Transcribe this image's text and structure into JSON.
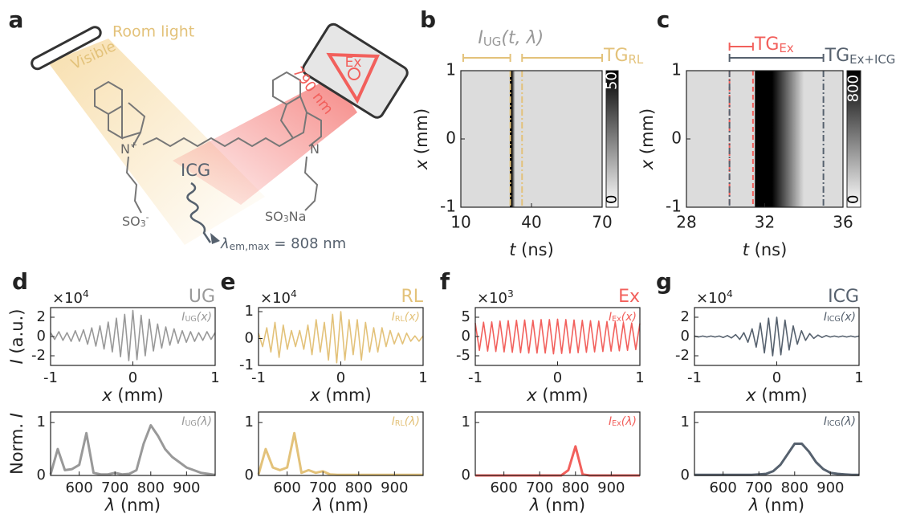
{
  "diagram": {
    "label": "a",
    "room_light": "Room light",
    "visible": "Visible",
    "laser": "Ex",
    "wavelength": "790 nm",
    "molecule": "ICG",
    "nitrogen_left": [
      {
        "text": "N"
      },
      {
        "text": "+",
        "sup": true
      }
    ],
    "nitrogen_right": [
      {
        "text": "N"
      }
    ],
    "sulfonate_left": [
      {
        "text": "SO"
      },
      {
        "text": "3",
        "sub": true
      },
      {
        "text": "-",
        "sup": true
      }
    ],
    "sulfonate_right": [
      {
        "text": "SO"
      },
      {
        "text": "3",
        "sub": true
      },
      {
        "text": "Na"
      }
    ],
    "emission": [
      {
        "text": "λ",
        "italic": true
      },
      {
        "text": "em,max",
        "sub": true
      },
      {
        "text": " = 808 nm"
      }
    ]
  },
  "chart_data": [
    {
      "type": "heatmap",
      "label": "b",
      "xlabel": [
        {
          "text": "t",
          "italic": true
        },
        {
          "text": " (ns)"
        }
      ],
      "ylabel": [
        {
          "text": "x",
          "italic": true
        },
        {
          "text": " (mm)"
        }
      ],
      "xlim": [
        10,
        70
      ],
      "xticks": [
        10,
        40,
        70
      ],
      "ylim": [
        -1,
        1
      ],
      "yticks": [
        -1,
        0,
        1
      ],
      "pulse": [
        30.8,
        33
      ],
      "markers": [
        {
          "x": 31,
          "color": "#e3c27a",
          "dash": "dashdot"
        },
        {
          "x": 36,
          "color": "#e3c27a",
          "dash": "dashdot"
        }
      ],
      "gates": [
        {
          "label": [
            {
              "text": "I",
              "italic": true
            },
            {
              "text": "UG",
              "sub": true
            },
            {
              "text": "(t, λ)",
              "italic": true
            }
          ],
          "color": "#e3c27a",
          "label_color": "#999999",
          "range": [
            11,
            31
          ]
        },
        {
          "label": [
            {
              "text": "TG"
            },
            {
              "text": "RL",
              "sub": true
            }
          ],
          "color": "#e3c27a",
          "range": [
            36,
            70
          ]
        }
      ],
      "colorbar": {
        "lim": [
          0,
          54
        ],
        "ticks": [
          0,
          50
        ]
      }
    },
    {
      "type": "heatmap",
      "label": "c",
      "xlabel": [
        {
          "text": "t",
          "italic": true
        },
        {
          "text": " (ns)"
        }
      ],
      "ylabel": [
        {
          "text": "x",
          "italic": true
        },
        {
          "text": " (mm)"
        }
      ],
      "xlim": [
        28,
        36
      ],
      "xticks": [
        28,
        32,
        36
      ],
      "ylim": [
        -1,
        1
      ],
      "yticks": [
        -1,
        0,
        1
      ],
      "pulse": [
        31.5,
        34
      ],
      "markers": [
        {
          "x": 30.2,
          "color": "#f2605c",
          "dash": "dashed"
        },
        {
          "x": 31.4,
          "color": "#f2605c",
          "dash": "dashed"
        },
        {
          "x": 30.2,
          "color": "#56616e",
          "dash": "dashdot"
        },
        {
          "x": 35,
          "color": "#56616e",
          "dash": "dashdot"
        }
      ],
      "gates": [
        {
          "label": [
            {
              "text": "TG"
            },
            {
              "text": "Ex",
              "sub": true
            }
          ],
          "color": "#f2605c",
          "range": [
            30.2,
            31.4
          ]
        },
        {
          "label": [
            {
              "text": "TG"
            },
            {
              "text": "Ex+ICG",
              "sub": true
            }
          ],
          "color": "#56616e",
          "range": [
            30.2,
            35
          ]
        }
      ],
      "colorbar": {
        "lim": [
          0,
          920
        ],
        "ticks": [
          0,
          800
        ]
      }
    },
    {
      "type": "line",
      "label": "d",
      "title": "UG",
      "color": "#999999",
      "multiplier": [
        {
          "text": "×10"
        },
        {
          "text": "4",
          "sup": true
        }
      ],
      "legend": [
        {
          "text": "I",
          "italic": true
        },
        {
          "text": "UG",
          "sub": true
        },
        {
          "text": "(x)",
          "italic": true
        }
      ],
      "xlabel": [
        {
          "text": "x",
          "italic": true
        },
        {
          "text": " (mm)"
        }
      ],
      "ylabel": [
        {
          "text": "I",
          "italic": true
        },
        {
          "text": " (a.u.)"
        }
      ],
      "xlim": [
        -1,
        1
      ],
      "xticks": [
        -1,
        0,
        1
      ],
      "ylim": [
        -3,
        3
      ],
      "yticks": [
        -2,
        0,
        2
      ],
      "x": [
        -1,
        -0.95,
        -0.9,
        -0.85,
        -0.8,
        -0.75,
        -0.7,
        -0.65,
        -0.6,
        -0.55,
        -0.5,
        -0.45,
        -0.4,
        -0.35,
        -0.3,
        -0.25,
        -0.2,
        -0.15,
        -0.1,
        -0.05,
        0,
        0.05,
        0.1,
        0.15,
        0.2,
        0.25,
        0.3,
        0.35,
        0.4,
        0.45,
        0.5,
        0.55,
        0.6,
        0.65,
        0.7,
        0.75,
        0.8,
        0.85,
        0.9,
        0.95,
        1
      ],
      "values": [
        0.4,
        -0.3,
        0.5,
        -0.4,
        0.4,
        -0.5,
        0.6,
        -0.5,
        0.7,
        -0.8,
        0.9,
        -1.0,
        1.1,
        -1.3,
        1.5,
        -1.6,
        1.9,
        -2.1,
        2.3,
        -2.5,
        2.7,
        -2.4,
        2.2,
        -2.0,
        1.8,
        -1.5,
        1.3,
        -1.2,
        1.0,
        -0.9,
        0.8,
        -0.7,
        0.6,
        -0.6,
        0.5,
        -0.5,
        0.4,
        -0.4,
        0.5,
        -0.3,
        0.4
      ]
    },
    {
      "type": "line",
      "color": "#999999",
      "legend": [
        {
          "text": "I",
          "italic": true
        },
        {
          "text": "UG",
          "sub": true
        },
        {
          "text": "(λ)",
          "italic": true
        }
      ],
      "xlabel": [
        {
          "text": "λ",
          "italic": true
        },
        {
          "text": " (nm)"
        }
      ],
      "ylabel": [
        {
          "text": "Norm. "
        },
        {
          "text": "I",
          "italic": true
        }
      ],
      "xlim": [
        520,
        980
      ],
      "xticks": [
        600,
        700,
        800,
        900
      ],
      "ylim": [
        0,
        1.2
      ],
      "yticks": [
        0,
        1
      ],
      "x": [
        520,
        540,
        560,
        580,
        600,
        620,
        640,
        660,
        680,
        700,
        720,
        740,
        760,
        780,
        800,
        820,
        840,
        860,
        880,
        900,
        920,
        940,
        960,
        980
      ],
      "values": [
        0.02,
        0.5,
        0.1,
        0.12,
        0.2,
        0.8,
        0.05,
        0.02,
        0.02,
        0.05,
        0.02,
        0.03,
        0.1,
        0.6,
        0.95,
        0.75,
        0.5,
        0.35,
        0.25,
        0.15,
        0.1,
        0.05,
        0.03,
        0.01
      ]
    },
    {
      "type": "line",
      "label": "e",
      "title": "RL",
      "color": "#e3c27a",
      "multiplier": [
        {
          "text": "×10"
        },
        {
          "text": "4",
          "sup": true
        }
      ],
      "legend": [
        {
          "text": "I",
          "italic": true
        },
        {
          "text": "RL",
          "sub": true
        },
        {
          "text": "(x)",
          "italic": true
        }
      ],
      "xlabel": [
        {
          "text": "x",
          "italic": true
        },
        {
          "text": " (mm)"
        }
      ],
      "xlim": [
        -1,
        1
      ],
      "xticks": [
        -1,
        0,
        1
      ],
      "ylim": [
        -1,
        1.15
      ],
      "yticks": [
        -1,
        0,
        1
      ],
      "x": [
        -1,
        -0.95,
        -0.9,
        -0.85,
        -0.8,
        -0.75,
        -0.7,
        -0.65,
        -0.6,
        -0.55,
        -0.5,
        -0.45,
        -0.4,
        -0.35,
        -0.3,
        -0.25,
        -0.2,
        -0.15,
        -0.1,
        -0.05,
        0,
        0.05,
        0.1,
        0.15,
        0.2,
        0.25,
        0.3,
        0.35,
        0.4,
        0.45,
        0.5,
        0.55,
        0.6,
        0.65,
        0.7,
        0.75,
        0.8,
        0.85,
        0.9,
        0.95,
        1
      ],
      "values": [
        0.2,
        -0.3,
        0.4,
        -0.5,
        0.6,
        -0.7,
        0.5,
        -0.4,
        0.3,
        -0.3,
        0.3,
        -0.4,
        0.5,
        -0.6,
        0.7,
        -0.5,
        0.6,
        -0.8,
        0.9,
        -0.9,
        1.0,
        -0.8,
        0.7,
        -0.6,
        0.7,
        -0.8,
        0.6,
        -0.5,
        0.4,
        -0.5,
        0.4,
        -0.3,
        0.3,
        -0.2,
        0.2,
        -0.2,
        0.2,
        -0.1,
        0.1,
        -0.1,
        0.1
      ]
    },
    {
      "type": "line",
      "color": "#e3c27a",
      "legend": [
        {
          "text": "I",
          "italic": true
        },
        {
          "text": "RL",
          "sub": true
        },
        {
          "text": "(λ)",
          "italic": true
        }
      ],
      "xlabel": [
        {
          "text": "λ",
          "italic": true
        },
        {
          "text": " (nm)"
        }
      ],
      "xlim": [
        520,
        980
      ],
      "xticks": [
        600,
        700,
        800,
        900
      ],
      "ylim": [
        0,
        1.2
      ],
      "yticks": [
        0,
        1
      ],
      "x": [
        520,
        540,
        560,
        580,
        600,
        620,
        640,
        660,
        680,
        700,
        720,
        740,
        760,
        780,
        800,
        820,
        840,
        860,
        880,
        900,
        920,
        940,
        960,
        980
      ],
      "values": [
        0.02,
        0.5,
        0.15,
        0.1,
        0.15,
        0.8,
        0.05,
        0.1,
        0.05,
        0.08,
        0.02,
        0.01,
        0.01,
        0.01,
        0.01,
        0.01,
        0.01,
        0.01,
        0.01,
        0.01,
        0.01,
        0.01,
        0.01,
        0.01
      ]
    },
    {
      "type": "line",
      "label": "f",
      "title": "Ex",
      "color": "#f2605c",
      "multiplier": [
        {
          "text": "×10"
        },
        {
          "text": "3",
          "sup": true
        }
      ],
      "legend": [
        {
          "text": "I",
          "italic": true
        },
        {
          "text": "Ex",
          "sub": true
        },
        {
          "text": "(x)",
          "italic": true
        }
      ],
      "xlabel": [
        {
          "text": "x",
          "italic": true
        },
        {
          "text": " (mm)"
        }
      ],
      "xlim": [
        -1,
        1
      ],
      "xticks": [
        -1,
        0,
        1
      ],
      "ylim": [
        -7.5,
        7.5
      ],
      "yticks": [
        -5,
        0,
        5
      ],
      "x": [
        -1,
        -0.95,
        -0.9,
        -0.85,
        -0.8,
        -0.75,
        -0.7,
        -0.65,
        -0.6,
        -0.55,
        -0.5,
        -0.45,
        -0.4,
        -0.35,
        -0.3,
        -0.25,
        -0.2,
        -0.15,
        -0.1,
        -0.05,
        0,
        0.05,
        0.1,
        0.15,
        0.2,
        0.25,
        0.3,
        0.35,
        0.4,
        0.45,
        0.5,
        0.55,
        0.6,
        0.65,
        0.7,
        0.75,
        0.8,
        0.85,
        0.9,
        0.95,
        1
      ],
      "values": [
        3.5,
        -3.6,
        3.7,
        -3.8,
        3.8,
        -3.9,
        4.0,
        -4.0,
        4.1,
        -4.1,
        4.2,
        -4.2,
        4.3,
        -4.3,
        4.2,
        -4.3,
        4.4,
        -4.3,
        4.4,
        -4.5,
        4.5,
        -4.4,
        4.4,
        -4.3,
        4.3,
        -4.2,
        4.2,
        -4.1,
        4.1,
        -4.0,
        4.0,
        -3.9,
        3.9,
        -3.8,
        3.8,
        -3.7,
        3.6,
        -3.6,
        3.5,
        -3.4,
        3.4
      ]
    },
    {
      "type": "line",
      "color": "#f2605c",
      "legend": [
        {
          "text": "I",
          "italic": true
        },
        {
          "text": "Ex",
          "sub": true
        },
        {
          "text": "(λ)",
          "italic": true
        }
      ],
      "xlabel": [
        {
          "text": "λ",
          "italic": true
        },
        {
          "text": " (nm)"
        }
      ],
      "xlim": [
        520,
        980
      ],
      "xticks": [
        600,
        700,
        800,
        900
      ],
      "ylim": [
        0,
        1.2
      ],
      "yticks": [
        0,
        1
      ],
      "x": [
        520,
        540,
        560,
        580,
        600,
        620,
        640,
        660,
        680,
        700,
        720,
        740,
        760,
        780,
        800,
        820,
        840,
        860,
        880,
        900,
        920,
        940,
        960,
        980
      ],
      "values": [
        0,
        0,
        0,
        0,
        0,
        0,
        0,
        0,
        0,
        0,
        0,
        0,
        0,
        0.1,
        0.55,
        0.02,
        0,
        0,
        0,
        0,
        0,
        0,
        0,
        0
      ]
    },
    {
      "type": "line",
      "label": "g",
      "title": "ICG",
      "color": "#56616e",
      "multiplier": [
        {
          "text": "×10"
        },
        {
          "text": "4",
          "sup": true
        }
      ],
      "legend": [
        {
          "text": "I",
          "italic": true
        },
        {
          "text": "ICG",
          "sub": true
        },
        {
          "text": "(x)",
          "italic": true
        }
      ],
      "xlabel": [
        {
          "text": "x",
          "italic": true
        },
        {
          "text": " (mm)"
        }
      ],
      "xlim": [
        -1,
        1
      ],
      "xticks": [
        -1,
        0,
        1
      ],
      "ylim": [
        -3,
        3
      ],
      "yticks": [
        -2,
        0,
        2
      ],
      "x": [
        -1,
        -0.95,
        -0.9,
        -0.85,
        -0.8,
        -0.75,
        -0.7,
        -0.65,
        -0.6,
        -0.55,
        -0.5,
        -0.45,
        -0.4,
        -0.35,
        -0.3,
        -0.25,
        -0.2,
        -0.15,
        -0.1,
        -0.05,
        0,
        0.05,
        0.1,
        0.15,
        0.2,
        0.25,
        0.3,
        0.35,
        0.4,
        0.45,
        0.5,
        0.55,
        0.6,
        0.65,
        0.7,
        0.75,
        0.8,
        0.85,
        0.9,
        0.95,
        1
      ],
      "values": [
        0.05,
        -0.05,
        0.05,
        -0.05,
        0.05,
        -0.05,
        0.05,
        -0.1,
        0.1,
        -0.15,
        0.2,
        -0.3,
        0.4,
        -0.6,
        0.8,
        -1.1,
        1.4,
        -1.7,
        1.9,
        -2.0,
        2.0,
        -1.9,
        1.7,
        -1.4,
        1.1,
        -0.8,
        0.6,
        -0.4,
        0.3,
        -0.2,
        0.15,
        -0.1,
        0.1,
        -0.05,
        0.05,
        -0.05,
        0.05,
        -0.05,
        0.05,
        -0.05,
        0.05
      ]
    },
    {
      "type": "line",
      "color": "#56616e",
      "legend": [
        {
          "text": "I",
          "italic": true
        },
        {
          "text": "ICG",
          "sub": true
        },
        {
          "text": "(λ)",
          "italic": true
        }
      ],
      "xlabel": [
        {
          "text": "λ",
          "italic": true
        },
        {
          "text": " (nm)"
        }
      ],
      "xlim": [
        520,
        980
      ],
      "xticks": [
        600,
        700,
        800,
        900
      ],
      "ylim": [
        0,
        1.2
      ],
      "yticks": [
        0,
        1
      ],
      "x": [
        520,
        540,
        560,
        580,
        600,
        620,
        640,
        660,
        680,
        700,
        720,
        740,
        760,
        780,
        800,
        820,
        840,
        860,
        880,
        900,
        920,
        940,
        960,
        980
      ],
      "values": [
        0.01,
        0.01,
        0.01,
        0.01,
        0.01,
        0.01,
        0.01,
        0.01,
        0.01,
        0.02,
        0.03,
        0.08,
        0.2,
        0.4,
        0.6,
        0.6,
        0.45,
        0.25,
        0.12,
        0.05,
        0.03,
        0.02,
        0.01,
        0.01
      ]
    }
  ]
}
